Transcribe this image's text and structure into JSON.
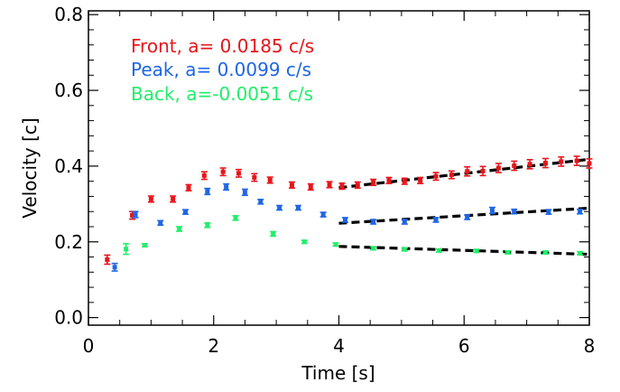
{
  "chart_data": {
    "type": "scatter",
    "xlabel": "Time [s]",
    "ylabel": "Velocity [c]",
    "xlim": [
      0,
      8
    ],
    "ylim": [
      -0.02,
      0.81
    ],
    "xticks": [
      0,
      2,
      4,
      6,
      8
    ],
    "yticks": [
      0.0,
      0.2,
      0.4,
      0.6,
      0.8
    ],
    "xtick_labels": [
      "0",
      "2",
      "4",
      "6",
      "8"
    ],
    "ytick_labels": [
      "0.0",
      "0.2",
      "0.4",
      "0.6",
      "0.8"
    ],
    "grid": false,
    "legend_position": "top-left",
    "series": [
      {
        "name": "Front, a= 0.0185 c/s",
        "color": "#e8141b",
        "x": [
          0.3,
          0.7,
          1.0,
          1.35,
          1.6,
          1.85,
          2.15,
          2.4,
          2.65,
          2.9,
          3.25,
          3.55,
          3.85,
          4.05,
          4.3,
          4.55,
          4.8,
          5.05,
          5.3,
          5.55,
          5.8,
          6.05,
          6.3,
          6.55,
          6.8,
          7.05,
          7.3,
          7.55,
          7.8,
          8.0
        ],
        "y": [
          0.153,
          0.27,
          0.313,
          0.313,
          0.343,
          0.375,
          0.385,
          0.381,
          0.37,
          0.363,
          0.35,
          0.345,
          0.351,
          0.347,
          0.35,
          0.357,
          0.362,
          0.36,
          0.362,
          0.373,
          0.377,
          0.386,
          0.387,
          0.395,
          0.401,
          0.405,
          0.408,
          0.412,
          0.414,
          0.407
        ],
        "errors": [
          0.012,
          0.01,
          0.008,
          0.008,
          0.008,
          0.01,
          0.01,
          0.01,
          0.01,
          0.008,
          0.008,
          0.008,
          0.008,
          0.008,
          0.008,
          0.008,
          0.008,
          0.008,
          0.008,
          0.01,
          0.01,
          0.012,
          0.012,
          0.012,
          0.012,
          0.012,
          0.012,
          0.012,
          0.012,
          0.012
        ]
      },
      {
        "name": "Peak, a= 0.0099 c/s",
        "color": "#1f66e5",
        "x": [
          0.42,
          0.75,
          1.15,
          1.55,
          1.9,
          2.2,
          2.5,
          2.75,
          3.05,
          3.35,
          3.75,
          4.1,
          4.55,
          5.05,
          5.55,
          6.05,
          6.45,
          6.8,
          7.35,
          7.85
        ],
        "y": [
          0.133,
          0.272,
          0.25,
          0.279,
          0.333,
          0.345,
          0.331,
          0.306,
          0.29,
          0.29,
          0.272,
          0.258,
          0.253,
          0.253,
          0.258,
          0.265,
          0.283,
          0.28,
          0.279,
          0.28
        ],
        "errors": [
          0.01,
          0.008,
          0.006,
          0.006,
          0.008,
          0.008,
          0.008,
          0.006,
          0.006,
          0.006,
          0.006,
          0.006,
          0.006,
          0.006,
          0.006,
          0.006,
          0.008,
          0.006,
          0.006,
          0.006
        ]
      },
      {
        "name": "Back, a=-0.0051 c/s",
        "color": "#22ee6a",
        "x": [
          0.6,
          0.9,
          1.45,
          1.9,
          2.35,
          2.95,
          3.45,
          3.95,
          4.55,
          5.05,
          5.6,
          6.2,
          6.7,
          7.3,
          7.85
        ],
        "y": [
          0.181,
          0.191,
          0.234,
          0.244,
          0.263,
          0.221,
          0.2,
          0.193,
          0.183,
          0.18,
          0.177,
          0.176,
          0.172,
          0.172,
          0.17
        ],
        "errors": [
          0.014,
          0.004,
          0.006,
          0.006,
          0.006,
          0.006,
          0.004,
          0.004,
          0.004,
          0.004,
          0.004,
          0.004,
          0.004,
          0.004,
          0.004
        ]
      }
    ],
    "fits": [
      {
        "x0": 4.0,
        "x1": 8.0,
        "y0": 0.343,
        "y1": 0.418
      },
      {
        "x0": 4.0,
        "x1": 8.0,
        "y0": 0.249,
        "y1": 0.289
      },
      {
        "x0": 4.0,
        "x1": 8.0,
        "y0": 0.188,
        "y1": 0.167
      }
    ]
  }
}
